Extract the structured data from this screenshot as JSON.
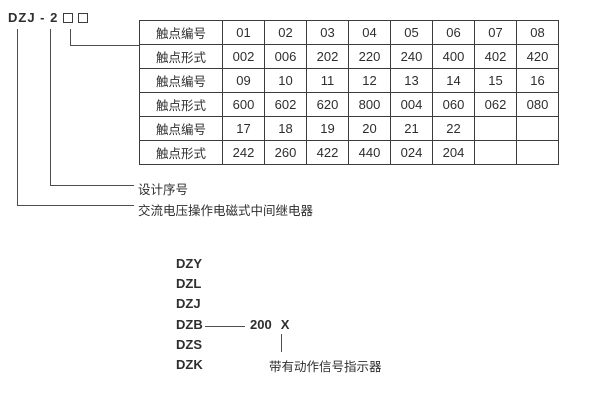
{
  "model_code": {
    "text": "DZJ - 2",
    "placeholder_boxes": 2
  },
  "table": {
    "rows": [
      {
        "header": "触点编号",
        "cells": [
          "01",
          "02",
          "03",
          "04",
          "05",
          "06",
          "07",
          "08"
        ]
      },
      {
        "header": "触点形式",
        "cells": [
          "002",
          "006",
          "202",
          "220",
          "240",
          "400",
          "402",
          "420"
        ]
      },
      {
        "header": "触点编号",
        "cells": [
          "09",
          "10",
          "11",
          "12",
          "13",
          "14",
          "15",
          "16"
        ]
      },
      {
        "header": "触点形式",
        "cells": [
          "600",
          "602",
          "620",
          "800",
          "004",
          "060",
          "062",
          "080"
        ]
      },
      {
        "header": "触点编号",
        "cells": [
          "17",
          "18",
          "19",
          "20",
          "21",
          "22",
          "",
          ""
        ]
      },
      {
        "header": "触点形式",
        "cells": [
          "242",
          "260",
          "422",
          "440",
          "024",
          "204",
          "",
          ""
        ]
      }
    ]
  },
  "callouts": {
    "design_serial": "设计序号",
    "relay_description": "交流电压操作电磁式中间继电器"
  },
  "model_list": {
    "items": [
      "DZY",
      "DZL",
      "DZJ",
      "DZB",
      "DZS",
      "DZK"
    ],
    "dzb_value": "200",
    "dzb_suffix": "X",
    "indicator_note": "带有动作信号指示器"
  },
  "colors": {
    "background": "#ffffff",
    "text": "#2e2e2e",
    "border": "#3c3c3c",
    "line": "#4d4d4d"
  }
}
